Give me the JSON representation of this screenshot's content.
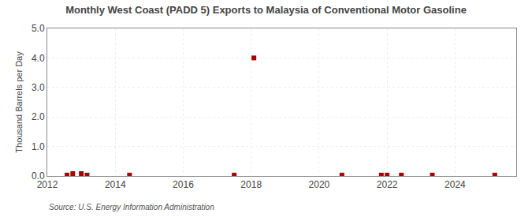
{
  "chart_data": {
    "type": "scatter",
    "title": "Monthly West Coast (PADD 5) Exports to Malaysia of Conventional Motor Gasoline",
    "y_label": "Thousand Barrels per Day",
    "annotations": [
      "Source: U.S. Energy Information Administration"
    ],
    "x": [
      2012.58,
      2012.75,
      2013.0,
      2013.17,
      2014.42,
      2017.5,
      2018.08,
      2020.67,
      2021.83,
      2022.0,
      2022.42,
      2023.33,
      2025.17
    ],
    "values": [
      0.03,
      0.08,
      0.08,
      0.03,
      0.03,
      0.03,
      4.0,
      0.03,
      0.03,
      0.03,
      0.03,
      0.03,
      0.03
    ],
    "color": "#aa0000",
    "marker": "square",
    "xlim": [
      2012.0,
      2025.8
    ],
    "xticks": [
      2012,
      2014,
      2016,
      2018,
      2020,
      2022,
      2024
    ],
    "ylim": [
      0.0,
      5.0
    ],
    "yticks": [
      {
        "value": 0.0,
        "label": "0.0"
      },
      {
        "value": 1.0,
        "label": "1.0"
      },
      {
        "value": 2.0,
        "label": "2.0"
      },
      {
        "value": 3.0,
        "label": "3.0"
      },
      {
        "value": 4.0,
        "label": "4.0"
      },
      {
        "value": 5.0,
        "label": "5.0"
      }
    ],
    "grid": true
  }
}
